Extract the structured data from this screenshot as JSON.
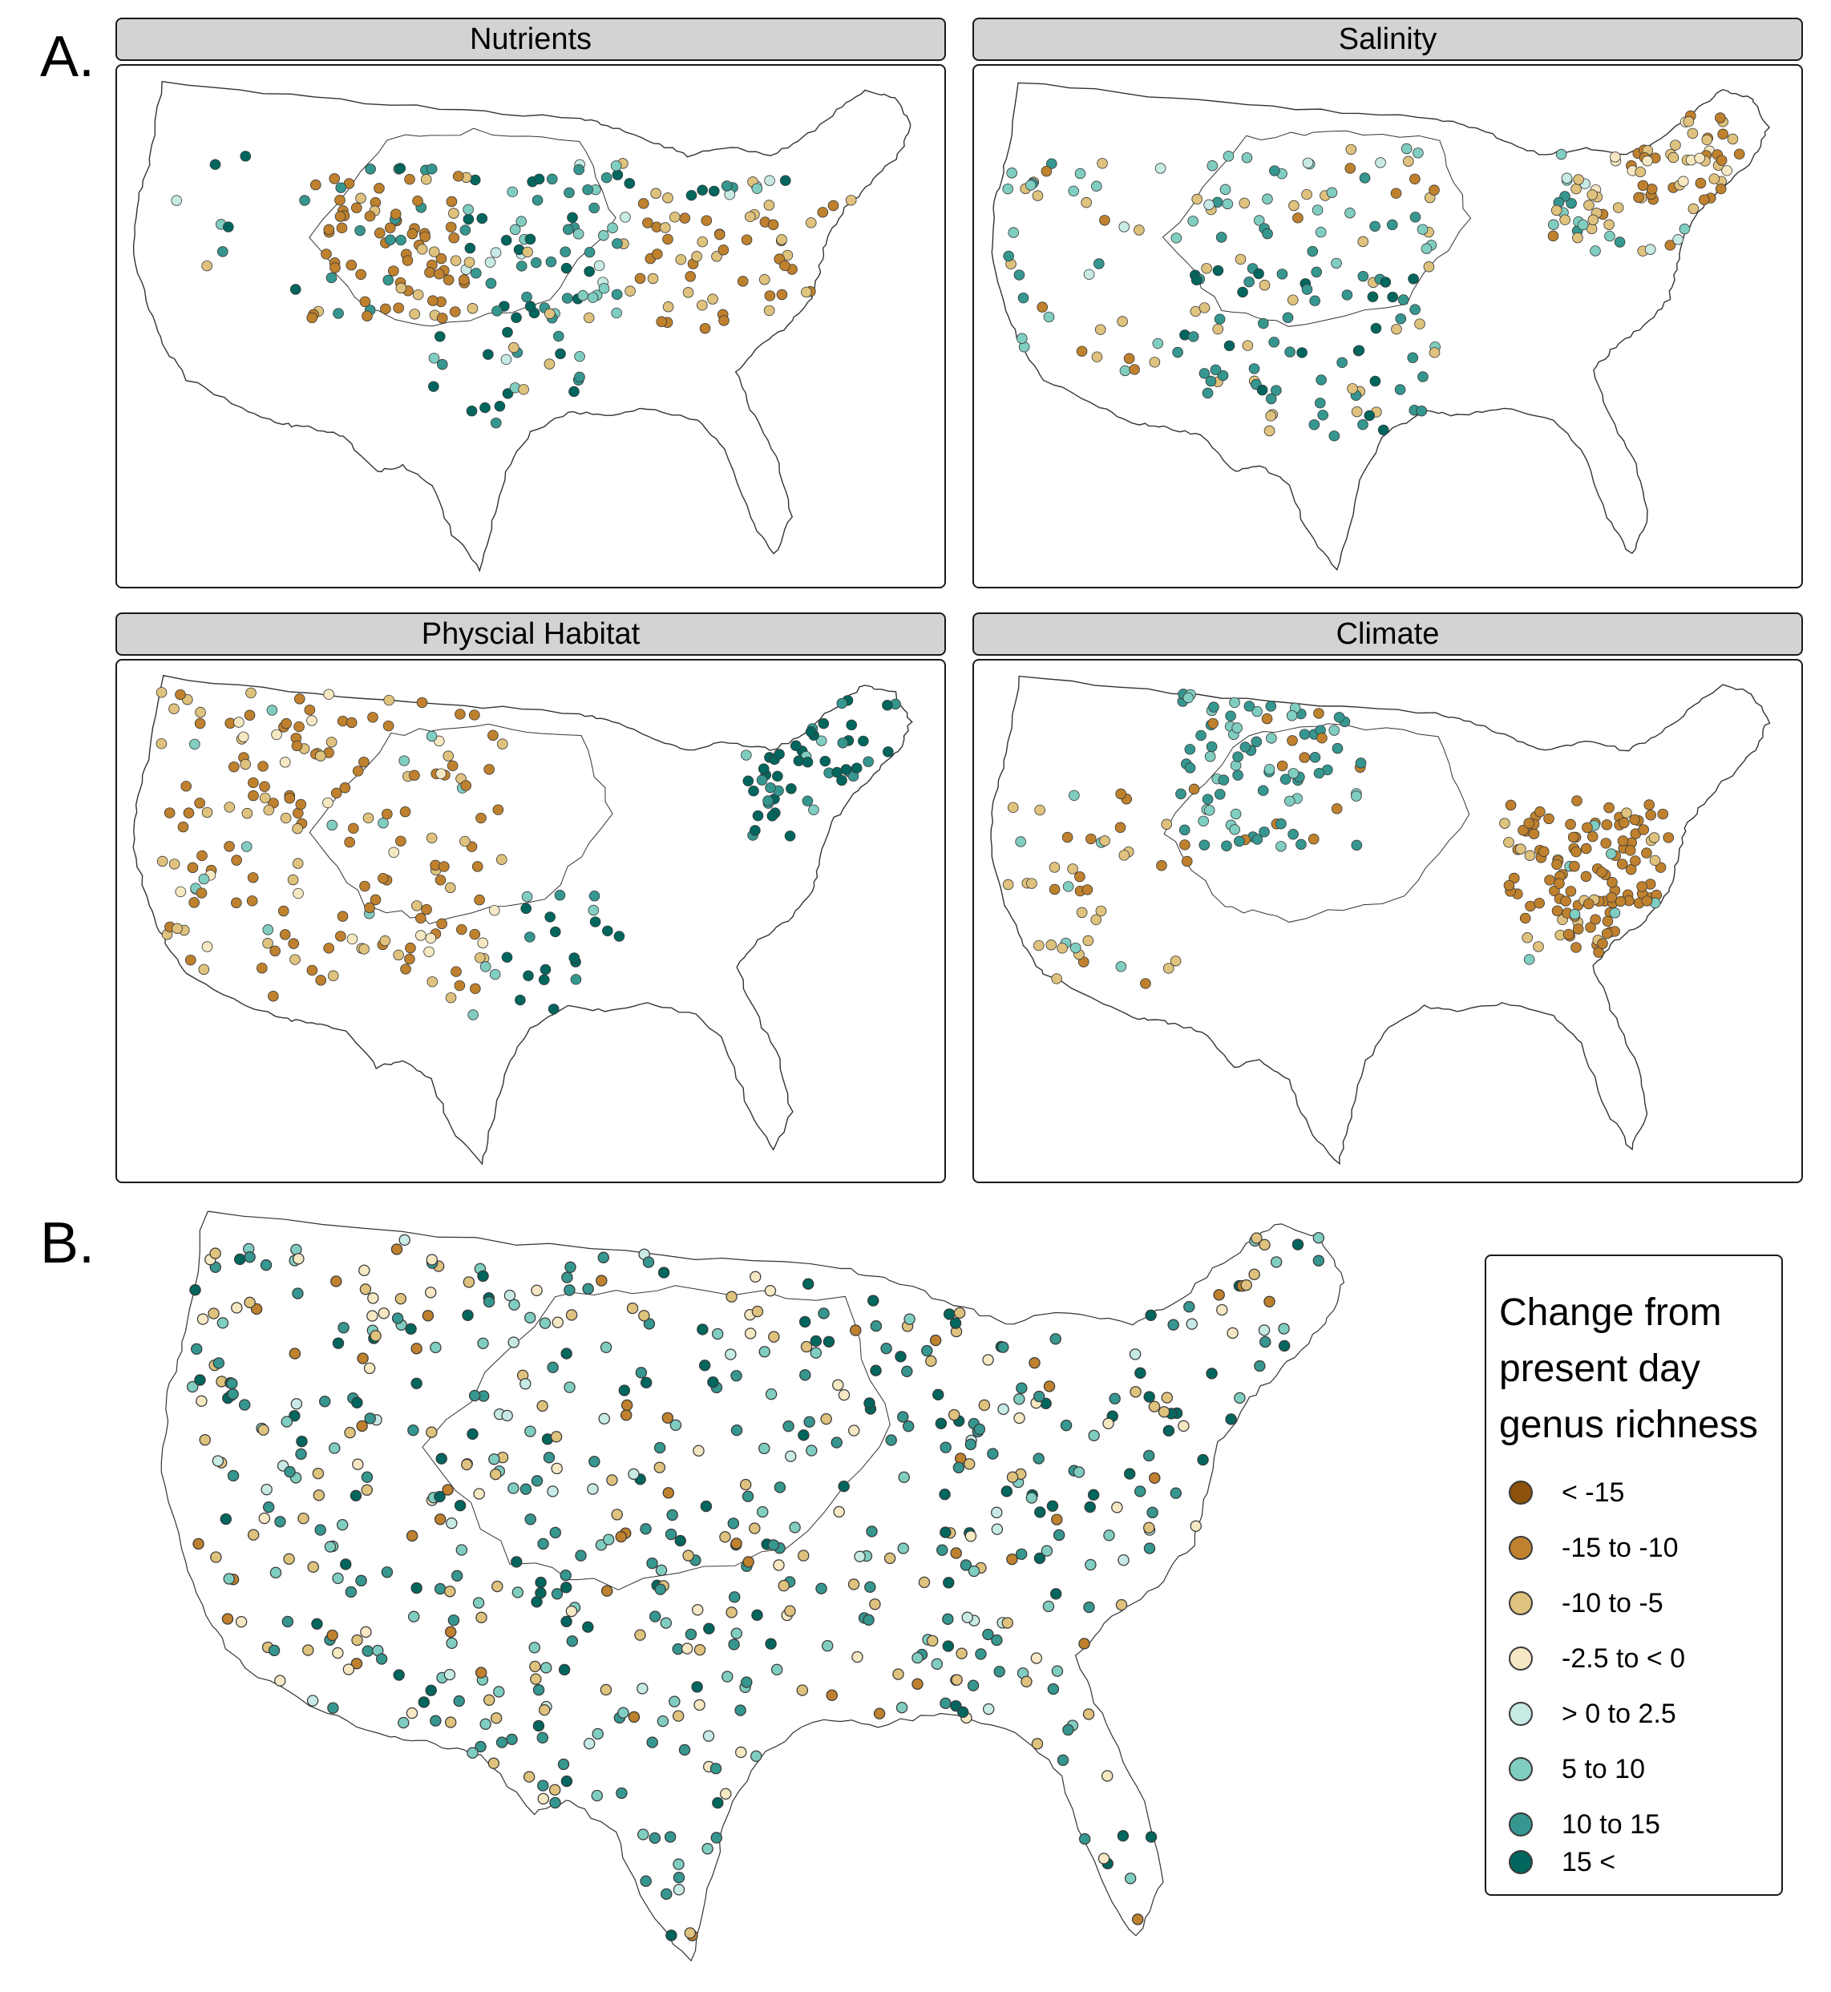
{
  "labels": {
    "a": "A.",
    "b": "B."
  },
  "panels": [
    {
      "title": "Nutrients",
      "scheme": "nutrients"
    },
    {
      "title": "Salinity",
      "scheme": "salinity"
    },
    {
      "title": "Physcial Habitat",
      "scheme": "habitat"
    },
    {
      "title": "Climate",
      "scheme": "climate"
    }
  ],
  "legend": {
    "title_lines": [
      "Change from",
      "present day",
      "genus richness"
    ],
    "items": [
      {
        "label": "< -15",
        "color": "#8c510a"
      },
      {
        "label": "-15 to -10",
        "color": "#bf812d"
      },
      {
        "label": "-10 to -5",
        "color": "#dfc27d"
      },
      {
        "label": "-2.5 to < 0",
        "color": "#f6e8c3"
      },
      {
        "label": "> 0 to 2.5",
        "color": "#c7eae5"
      },
      {
        "label": "5 to 10",
        "color": "#80cdc1"
      },
      {
        "label": "10 to 15",
        "color": "#35978f"
      },
      {
        "label": "15 <",
        "color": "#01665e"
      }
    ]
  },
  "colors": {
    "outline": "#333333",
    "strip": "#d3d3d3",
    "point_stroke": "#3a3a3a"
  }
}
